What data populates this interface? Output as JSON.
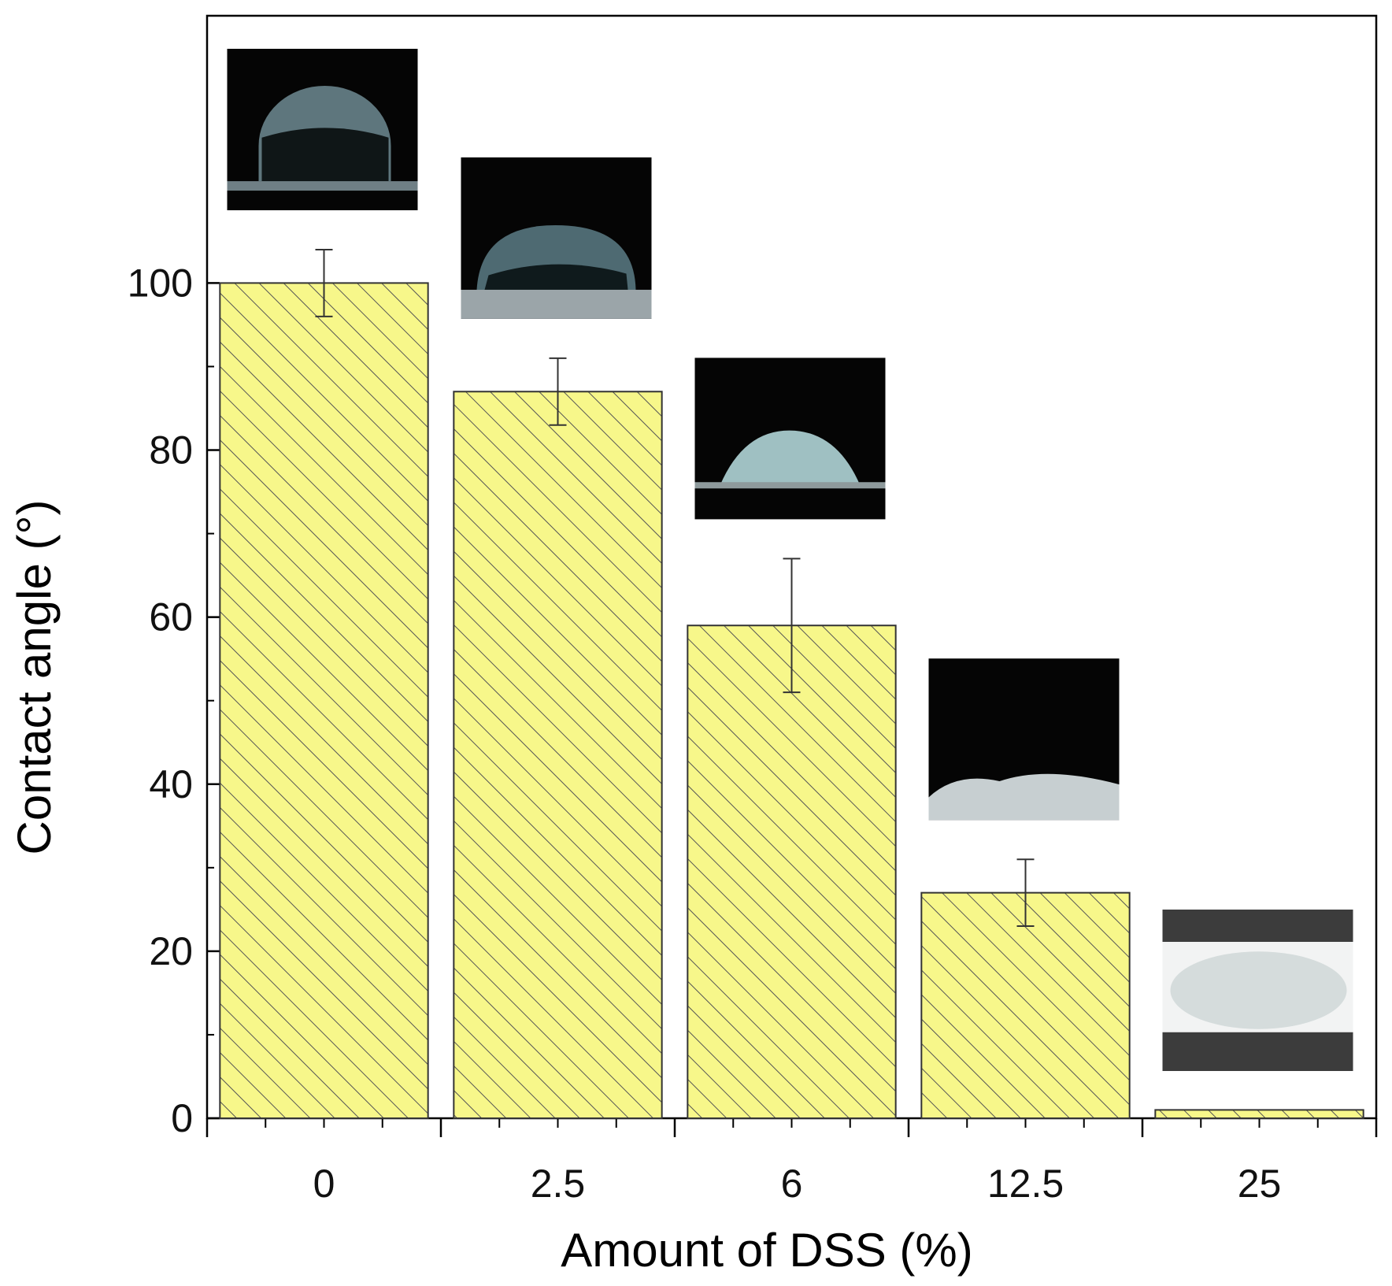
{
  "chart_data": {
    "type": "bar",
    "categories": [
      "0",
      "2.5",
      "6",
      "12.5",
      "25"
    ],
    "values": [
      100,
      87,
      59,
      27,
      1
    ],
    "errors": [
      4,
      4,
      8,
      4,
      0
    ],
    "xlabel": "Amount of DSS (%)",
    "ylabel": "Contact angle (°)",
    "ylim": [
      0,
      132
    ],
    "yticks": [
      0,
      20,
      40,
      60,
      80,
      100
    ],
    "grid": false,
    "bar_fill": "#f7f78a",
    "bar_pattern": "diagonal-hatch",
    "inset_images": [
      "droplet-photo",
      "droplet-photo",
      "droplet-photo",
      "droplet-photo",
      "droplet-photo"
    ]
  }
}
